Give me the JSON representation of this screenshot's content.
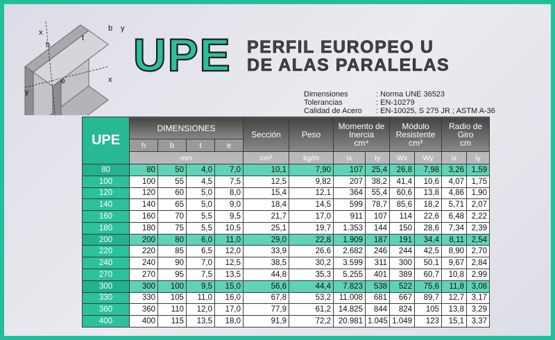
{
  "diagram": {
    "labels": [
      "x",
      "h",
      "t",
      "b",
      "y",
      "y",
      "e",
      "x"
    ]
  },
  "header": {
    "logo": "UPE",
    "title_lines": [
      "PERFIL EUROPEO U",
      "DE ALAS PARALELAS"
    ]
  },
  "specs": [
    [
      "Dimensiones",
      ": Norma UNE 36523"
    ],
    [
      "Tolerancias",
      ": EN-10279"
    ],
    [
      "Calidad de Acero",
      ": EN-10025, S 275 JR ; ASTM A-36"
    ]
  ],
  "table": {
    "corner": "UPE",
    "dimensions": {
      "label": "DIMENSIONES",
      "cols": [
        "h",
        "b",
        "t",
        "e"
      ],
      "unit": "mm"
    },
    "seccion": {
      "label": "Sección",
      "unit": "cm²"
    },
    "peso": {
      "label": "Peso",
      "unit": "kg/m"
    },
    "groups": [
      {
        "label": "Momento de Inercia",
        "unit": "cm⁴",
        "cols": [
          "Ix",
          "Iy"
        ]
      },
      {
        "label": "Módulo Resistente",
        "unit": "cm³",
        "cols": [
          "Wx",
          "Wy"
        ]
      },
      {
        "label": "Radio de Giro",
        "unit": "cm",
        "cols": [
          "ix",
          "iy"
        ]
      }
    ],
    "rows": [
      [
        "80",
        "80",
        "50",
        "4,0",
        "7,0",
        "10,1",
        "7,90",
        "107",
        "25,4",
        "26,8",
        "7,98",
        "3,26",
        "1,59"
      ],
      [
        "100",
        "100",
        "55",
        "4,5",
        "7,5",
        "12,5",
        "9,82",
        "207",
        "38,2",
        "41,4",
        "10,6",
        "4,07",
        "1,75"
      ],
      [
        "120",
        "120",
        "60",
        "5,0",
        "8,0",
        "15,4",
        "12,1",
        "364",
        "55,4",
        "60,6",
        "13,8",
        "4,86",
        "1,90"
      ],
      [
        "140",
        "140",
        "65",
        "5,0",
        "9,0",
        "18,4",
        "14,5",
        "599",
        "78,7",
        "85,6",
        "18,2",
        "5,71",
        "2,07"
      ],
      [
        "160",
        "160",
        "70",
        "5,5",
        "9,5",
        "21,7",
        "17,0",
        "911",
        "107",
        "114",
        "22,6",
        "6,48",
        "2,22"
      ],
      [
        "180",
        "180",
        "75",
        "5,5",
        "10,5",
        "25,1",
        "19,7",
        "1.353",
        "144",
        "150",
        "28,6",
        "7,34",
        "2,39"
      ],
      [
        "200",
        "200",
        "80",
        "6,0",
        "11,0",
        "29,0",
        "22,8",
        "1.909",
        "187",
        "191",
        "34,4",
        "8,11",
        "2,54"
      ],
      [
        "220",
        "220",
        "85",
        "6,5",
        "12,0",
        "33,9",
        "26,6",
        "2.682",
        "246",
        "244",
        "42,5",
        "8,90",
        "2,70"
      ],
      [
        "240",
        "240",
        "90",
        "7,0",
        "12,5",
        "38,5",
        "30,2",
        "3.599",
        "311",
        "300",
        "50,1",
        "9,67",
        "2,84"
      ],
      [
        "270",
        "270",
        "95",
        "7,5",
        "13,5",
        "44,8",
        "35,3",
        "5.255",
        "401",
        "389",
        "60,7",
        "10,8",
        "2,99"
      ],
      [
        "300",
        "300",
        "100",
        "9,5",
        "15,0",
        "56,6",
        "44,4",
        "7.823",
        "538",
        "522",
        "75,6",
        "11,8",
        "3,08"
      ],
      [
        "330",
        "330",
        "105",
        "11,0",
        "16,0",
        "67,8",
        "53,2",
        "11.008",
        "681",
        "667",
        "89,7",
        "12,7",
        "3,17"
      ],
      [
        "360",
        "360",
        "110",
        "12,0",
        "17,0",
        "77,9",
        "61,2",
        "14.825",
        "844",
        "824",
        "105",
        "13,8",
        "3,29"
      ],
      [
        "400",
        "400",
        "115",
        "13,5",
        "18,0",
        "91,9",
        "72,2",
        "20.981",
        "1.045",
        "1.049",
        "123",
        "15,1",
        "3,37"
      ]
    ]
  }
}
